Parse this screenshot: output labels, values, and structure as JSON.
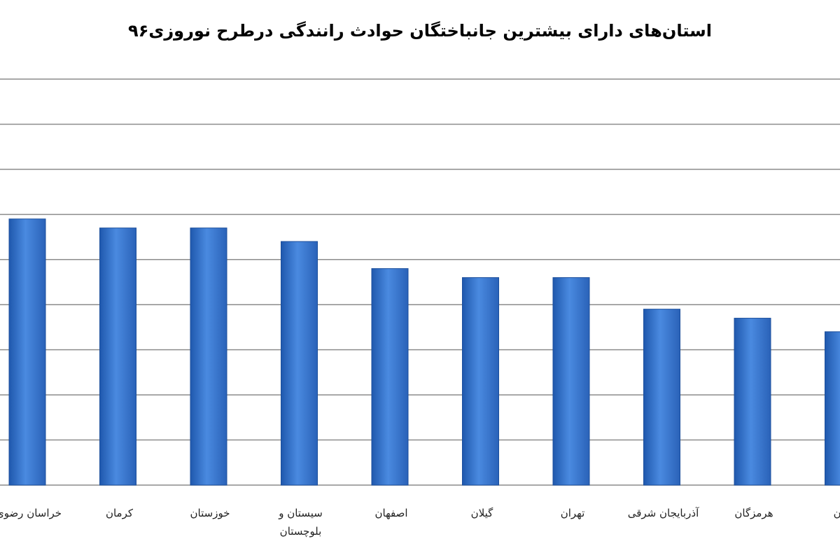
{
  "chart_data": {
    "type": "bar",
    "title": "استان‌های دارای بیشترین جانباختگان حوادث رانندگی درطرح نوروزی۹۶",
    "categories": [
      "خراسان رضوی",
      "کرمان",
      "خوزستان",
      "سیستان و بلوچستان",
      "اصفهان",
      "گیلان",
      "تهران",
      "آذربایجان شرقی",
      "هرمزگان",
      "ایران"
    ],
    "category_lines": [
      [
        "خراسان رضوی"
      ],
      [
        "کرمان"
      ],
      [
        "خوزستان"
      ],
      [
        "سیستان و",
        "بلوچستان"
      ],
      [
        "اصفهان"
      ],
      [
        "گیلان"
      ],
      [
        "تهران"
      ],
      [
        "آذربایجان شرقی"
      ],
      [
        "هرمزگان"
      ],
      [
        "ایران"
      ]
    ],
    "values": [
      29.5,
      28.5,
      28.5,
      27,
      24,
      23,
      23,
      19.5,
      18.5,
      17
    ],
    "ylim": [
      0,
      45
    ],
    "grid": true,
    "bar_color": "#2f6fc8",
    "xlabel": "",
    "ylabel": ""
  }
}
